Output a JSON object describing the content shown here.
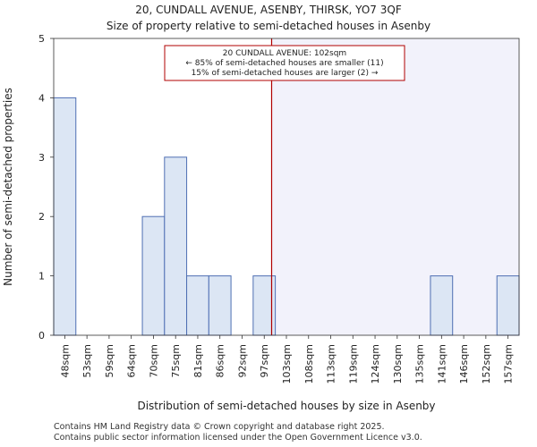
{
  "chart_data": {
    "type": "bar",
    "title": "20, CUNDALL AVENUE, ASENBY, THIRSK, YO7 3QF",
    "subtitle": "Size of property relative to semi-detached houses in Asenby",
    "xlabel": "Distribution of semi-detached houses by size in Asenby",
    "ylabel": "Number of semi-detached properties",
    "categories": [
      "48sqm",
      "53sqm",
      "59sqm",
      "64sqm",
      "70sqm",
      "75sqm",
      "81sqm",
      "86sqm",
      "92sqm",
      "97sqm",
      "103sqm",
      "108sqm",
      "113sqm",
      "119sqm",
      "124sqm",
      "130sqm",
      "135sqm",
      "141sqm",
      "146sqm",
      "152sqm",
      "157sqm"
    ],
    "values": [
      4,
      0,
      0,
      0,
      2,
      3,
      1,
      1,
      0,
      1,
      0,
      0,
      0,
      0,
      0,
      0,
      0,
      1,
      0,
      0,
      1
    ],
    "ylim": [
      0,
      5
    ],
    "yticks": [
      0,
      1,
      2,
      3,
      4,
      5
    ],
    "grid": false,
    "colors": {
      "bar_fill": "#dce6f4",
      "bar_edge": "#4f6fb3",
      "marker": "#b00000",
      "highlight": "#f2f2fb"
    },
    "property_marker": {
      "value_sqm": 102,
      "annotation": [
        "20 CUNDALL AVENUE: 102sqm",
        "← 85% of semi-detached houses are smaller (11)",
        "15% of semi-detached houses are larger (2) →"
      ]
    }
  },
  "footer": {
    "line1": "Contains HM Land Registry data © Crown copyright and database right 2025.",
    "line2": "Contains public sector information licensed under the Open Government Licence v3.0."
  }
}
